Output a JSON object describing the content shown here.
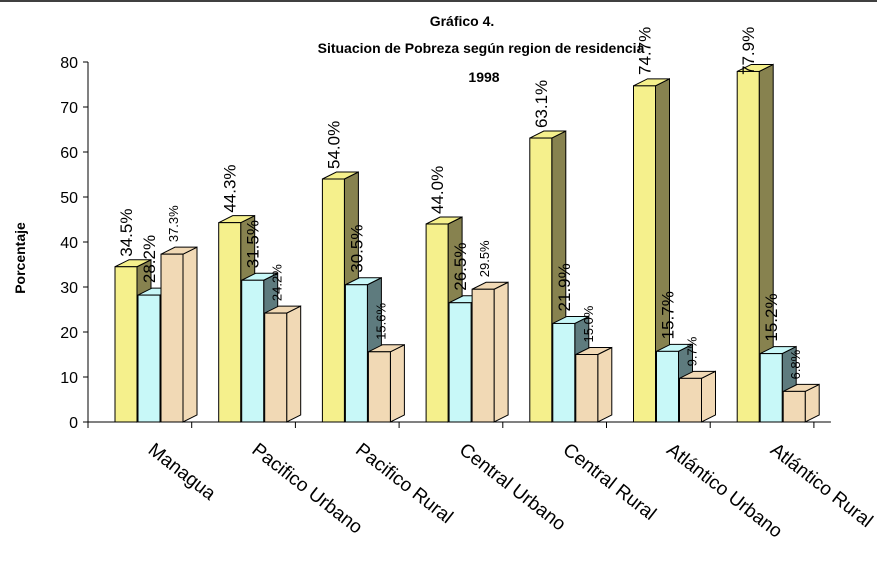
{
  "chart_data": {
    "type": "bar",
    "title": "Gráfico 4.",
    "subtitle": "Situacion de Pobreza según region de residencia",
    "year": "1998",
    "ylabel": "Porcentaje",
    "xlabel": "",
    "ylim": [
      0,
      80
    ],
    "yticks": [
      0,
      10,
      20,
      30,
      40,
      50,
      60,
      70,
      80
    ],
    "grid": false,
    "legend": "none",
    "categories": [
      "Managua",
      "Pacifico Urbano",
      "Pacifico Rural",
      "Central Urbano",
      "Central Rural",
      "Atlántico Urbano",
      "Atlántico Rural"
    ],
    "series": [
      {
        "values": [
          34.5,
          44.3,
          54.0,
          44.0,
          63.1,
          74.7,
          77.9
        ],
        "labels": [
          "34.5%",
          "44.3%",
          "54.0%",
          "44.0%",
          "63.1%",
          "74.7%",
          "77.9%"
        ],
        "color": "#F5F08C",
        "side_color": "#87824F"
      },
      {
        "values": [
          28.2,
          31.5,
          30.5,
          26.5,
          21.9,
          15.7,
          15.2
        ],
        "labels": [
          "28.2%",
          "31.5%",
          "30.5%",
          "26.5%",
          "21.9%",
          "15.7%",
          "15.2%"
        ],
        "color": "#C8F8F8",
        "side_color": "#5E7B7E"
      },
      {
        "values": [
          37.3,
          24.2,
          15.6,
          29.5,
          15.0,
          9.7,
          6.8
        ],
        "labels": [
          "37.3%",
          "24.2%",
          "15.6%",
          "29.5%",
          "15.0%",
          "9.7%",
          "6.8%"
        ],
        "color": "#F1D9B5",
        "side_color": "#F1D9B5"
      }
    ]
  }
}
